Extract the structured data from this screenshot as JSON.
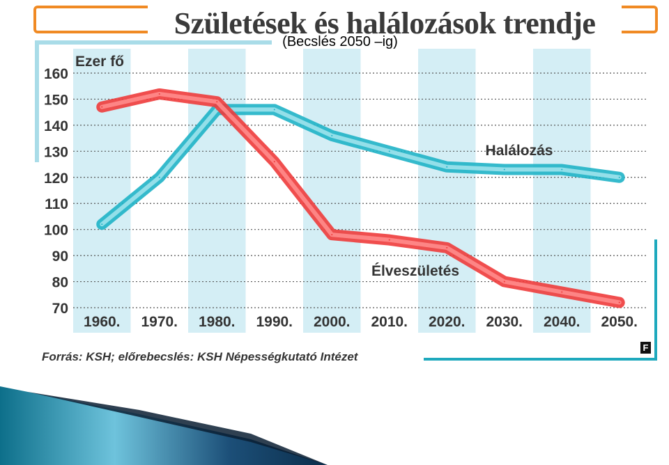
{
  "title": "Születések és halálozások trendje",
  "subtitle": "(Becslés 2050 –ig)",
  "source": "Forrás: KSH; előrebecslés: KSH Népességkutató Intézet",
  "logo_text": "F",
  "colors": {
    "accent": "#f08a24",
    "halalozas": "#1fb3c6",
    "elveszuletes": "#ee3b3b",
    "band": "#d4eef5"
  },
  "chart_data": {
    "type": "line",
    "ylabel": "Ezer fő",
    "ylim": [
      70,
      160
    ],
    "yticks": [
      70,
      80,
      90,
      100,
      110,
      120,
      130,
      140,
      150,
      160
    ],
    "categories": [
      "1960.",
      "1970.",
      "1980.",
      "1990.",
      "2000.",
      "2010.",
      "2020.",
      "2030.",
      "2040.",
      "2050."
    ],
    "grid": true,
    "series": [
      {
        "name": "Halálozás",
        "color": "#1fb3c6",
        "values": [
          102,
          120,
          146,
          146,
          136,
          130,
          124,
          123,
          123,
          120
        ]
      },
      {
        "name": "Élveszületés",
        "color": "#ee3b3b",
        "values": [
          147,
          152,
          149,
          126,
          98,
          96,
          93,
          80,
          76,
          72
        ]
      }
    ]
  }
}
